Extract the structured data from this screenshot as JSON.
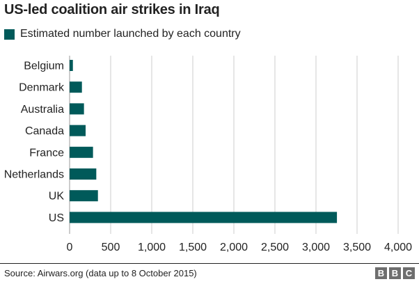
{
  "colors": {
    "bar": "#005a5a",
    "grid": "#cccccc",
    "text": "#222222",
    "logo": "#6e6e6e"
  },
  "source": "Source: Airwars.org (data up to 8 October 2015)",
  "logo_letters": [
    "B",
    "B",
    "C"
  ],
  "chart_data": {
    "type": "bar",
    "orientation": "horizontal",
    "title": "US-led coalition air strikes in Iraq",
    "legend": [
      "Estimated number launched by each country"
    ],
    "categories": [
      "Belgium",
      "Denmark",
      "Australia",
      "Canada",
      "France",
      "Netherlands",
      "UK",
      "US"
    ],
    "series": [
      {
        "name": "Estimated number launched by each country",
        "values": [
          40,
          150,
          175,
          195,
          285,
          325,
          345,
          3255
        ]
      }
    ],
    "xlim": [
      0,
      4000
    ],
    "xticks": [
      0,
      500,
      1000,
      1500,
      2000,
      2500,
      3000,
      3500,
      4000
    ],
    "xtick_labels": [
      "0",
      "500",
      "1,000",
      "1,500",
      "2,000",
      "2,500",
      "3,000",
      "3,500",
      "4,000"
    ],
    "xlabel": "",
    "ylabel": "",
    "grid": "vertical"
  }
}
